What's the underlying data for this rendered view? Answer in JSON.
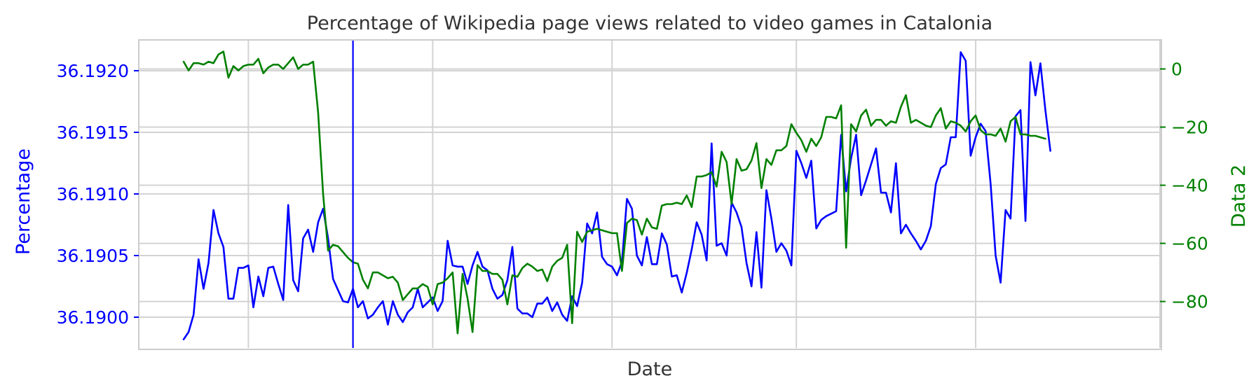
{
  "chart_data": {
    "type": "line",
    "title": "Percentage of Wikipedia page views related to video games in Catalonia",
    "xlabel": "Date",
    "ylabel": "Percentage",
    "y2label": "Data 2",
    "ylim": [
      36.18975,
      36.19225
    ],
    "y2lim": [
      -96,
      10
    ],
    "yticks": [
      "36.1900",
      "36.1905",
      "36.1910",
      "36.1915",
      "36.1920"
    ],
    "y2ticks": [
      "−80",
      "−60",
      "−40",
      "−20",
      "0"
    ],
    "grid": true,
    "x_index_range": [
      -9,
      196
    ],
    "marker_index": 34,
    "colors": {
      "primary": "#0000ff",
      "secondary": "#008000",
      "grid": "#d3d3d3",
      "frame": "#cccccc",
      "text": "#333333"
    },
    "series": [
      {
        "axis": "left",
        "color": "#0000ff",
        "values": [
          36.18982,
          36.18988,
          36.19002,
          36.19047,
          36.19023,
          36.19044,
          36.19087,
          36.19068,
          36.19057,
          36.19015,
          36.19015,
          36.1904,
          36.1904,
          36.19042,
          36.19008,
          36.19033,
          36.19017,
          36.1904,
          36.19041,
          36.19027,
          36.19014,
          36.19091,
          36.1903,
          36.19021,
          36.19064,
          36.19071,
          36.19053,
          36.19077,
          36.19088,
          36.19064,
          36.19031,
          36.19022,
          36.19013,
          36.19012,
          36.19023,
          36.19008,
          36.19013,
          36.18999,
          36.19002,
          36.19008,
          36.19013,
          36.18994,
          36.19013,
          36.19002,
          36.18996,
          36.19004,
          36.19008,
          36.19023,
          36.19008,
          36.19012,
          36.19016,
          36.19005,
          36.19013,
          36.19062,
          36.19042,
          36.19041,
          36.19041,
          36.19027,
          36.19042,
          36.19053,
          36.19041,
          36.19038,
          36.19023,
          36.19015,
          36.19018,
          36.1903,
          36.19057,
          36.19007,
          36.19003,
          36.19003,
          36.19,
          36.19011,
          36.19011,
          36.19016,
          36.19005,
          36.19012,
          36.19002,
          36.18997,
          36.19017,
          36.19009,
          36.19028,
          36.19076,
          36.19068,
          36.19085,
          36.19049,
          36.19043,
          36.19041,
          36.19034,
          36.19045,
          36.19096,
          36.19088,
          36.1905,
          36.19042,
          36.19065,
          36.19043,
          36.19043,
          36.19068,
          36.19059,
          36.19033,
          36.19034,
          36.1902,
          36.19036,
          36.19055,
          36.19077,
          36.19067,
          36.19046,
          36.19141,
          36.19058,
          36.1906,
          36.1905,
          36.19093,
          36.19085,
          36.19073,
          36.19044,
          36.19025,
          36.19069,
          36.19024,
          36.19103,
          36.1908,
          36.19053,
          36.1906,
          36.19054,
          36.19042,
          36.19135,
          36.19125,
          36.19113,
          36.19127,
          36.19072,
          36.19079,
          36.19082,
          36.19084,
          36.19086,
          36.19148,
          36.19102,
          36.19129,
          36.19148,
          36.19099,
          36.19111,
          36.19124,
          36.19137,
          36.19101,
          36.19101,
          36.19085,
          36.19125,
          36.19068,
          36.19075,
          36.19068,
          36.19062,
          36.19055,
          36.19062,
          36.19074,
          36.19108,
          36.19121,
          36.19124,
          36.19146,
          36.19146,
          36.19215,
          36.19208,
          36.19131,
          36.19146,
          36.19157,
          36.19151,
          36.19108,
          36.1905,
          36.19028,
          36.19087,
          36.1908,
          36.19163,
          36.19168,
          36.19078,
          36.19207,
          36.1918,
          36.19206,
          36.19168,
          36.19135
        ]
      },
      {
        "axis": "right",
        "color": "#008000",
        "values": [
          2.5,
          -0.5,
          2.0,
          2.0,
          1.5,
          2.5,
          2.0,
          5.0,
          6.0,
          -3.0,
          1.0,
          -0.5,
          1.0,
          1.5,
          1.5,
          3.5,
          -1.5,
          0.5,
          1.5,
          1.5,
          0.0,
          2.0,
          4.0,
          0.0,
          1.5,
          1.5,
          2.5,
          -15.0,
          -43.0,
          -62.5,
          -60.5,
          -61.0,
          -63.0,
          -65.0,
          -66.5,
          -67.0,
          -72.5,
          -75.5,
          -70.0,
          -70.0,
          -71.0,
          -72.0,
          -71.5,
          -73.5,
          -79.5,
          -77.5,
          -75.5,
          -75.5,
          -74.0,
          -75.0,
          -81.0,
          -74.0,
          -73.5,
          -72.0,
          -70.0,
          -91.0,
          -70.5,
          -79.0,
          -90.5,
          -67.5,
          -69.5,
          -69.5,
          -70.5,
          -70.5,
          -72.5,
          -81.0,
          -71.0,
          -71.5,
          -68.5,
          -67.0,
          -68.0,
          -69.5,
          -69.0,
          -73.0,
          -68.0,
          -66.0,
          -65.0,
          -60.5,
          -87.5,
          -56.0,
          -59.5,
          -56.0,
          -55.5,
          -55.0,
          -55.5,
          -56.0,
          -56.5,
          -56.5,
          -69.5,
          -53.0,
          -51.5,
          -52.0,
          -57.0,
          -51.5,
          -54.5,
          -55.0,
          -47.0,
          -46.5,
          -46.5,
          -46.0,
          -46.5,
          -43.5,
          -47.5,
          -37.0,
          -37.0,
          -36.5,
          -35.5,
          -40.5,
          -28.5,
          -32.0,
          -46.5,
          -31.0,
          -35.0,
          -34.5,
          -31.5,
          -25.5,
          -41.0,
          -31.0,
          -33.0,
          -28.0,
          -28.0,
          -26.5,
          -19.0,
          -22.0,
          -24.5,
          -28.5,
          -24.0,
          -26.5,
          -23.5,
          -16.5,
          -16.5,
          -17.0,
          -12.5,
          -61.5,
          -19.0,
          -21.5,
          -16.0,
          -14.0,
          -19.5,
          -17.5,
          -17.5,
          -19.5,
          -18.0,
          -18.5,
          -13.0,
          -9.0,
          -18.5,
          -17.5,
          -18.5,
          -19.5,
          -20.0,
          -16.0,
          -13.5,
          -20.5,
          -18.0,
          -18.5,
          -19.5,
          -21.5,
          -18.0,
          -16.0,
          -21.0,
          -22.5,
          -22.5,
          -23.0,
          -20.5,
          -25.0,
          -18.0,
          -16.5,
          -22.5,
          -22.5,
          -23.0,
          -23.0,
          -23.5,
          -24.0
        ]
      }
    ]
  }
}
